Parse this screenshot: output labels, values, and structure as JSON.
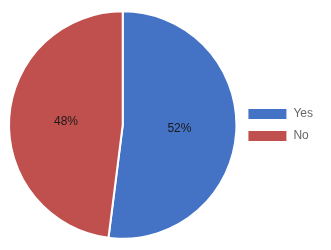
{
  "chart_data": {
    "type": "pie",
    "categories": [
      "Yes",
      "No"
    ],
    "values": [
      52,
      48
    ],
    "value_labels": [
      "52%",
      "48%"
    ],
    "colors": [
      "#4472C4",
      "#C0504D"
    ],
    "data_labels": true,
    "legend": "right"
  }
}
